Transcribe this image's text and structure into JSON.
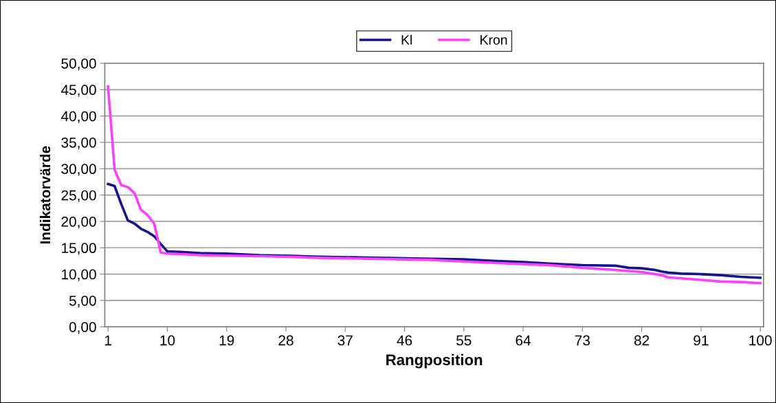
{
  "chart_data": {
    "type": "line",
    "xlabel": "Rangposition",
    "ylabel": "Indikatorvärde",
    "series": [
      {
        "name": "Kl",
        "color": "#14148c",
        "x": [
          1,
          2,
          3,
          4,
          5,
          6,
          7,
          8,
          9,
          10,
          12,
          15,
          19,
          24,
          28,
          33,
          37,
          42,
          46,
          50,
          55,
          60,
          64,
          68,
          73,
          78,
          80,
          82,
          84,
          85,
          86,
          88,
          91,
          94,
          97,
          100
        ],
        "values": [
          27.1,
          26.7,
          23.3,
          20.2,
          19.6,
          18.6,
          18.0,
          17.2,
          15.7,
          14.3,
          14.2,
          14.0,
          13.9,
          13.6,
          13.5,
          13.3,
          13.2,
          13.1,
          13.0,
          12.9,
          12.8,
          12.5,
          12.3,
          12.0,
          11.7,
          11.6,
          11.2,
          11.1,
          10.8,
          10.5,
          10.3,
          10.1,
          10.0,
          9.8,
          9.5,
          9.3
        ]
      },
      {
        "name": "Kron",
        "color": "#ff40ff",
        "x": [
          1,
          2,
          3,
          4,
          5,
          6,
          7,
          8,
          9,
          10,
          12,
          15,
          19,
          24,
          28,
          33,
          37,
          42,
          46,
          50,
          55,
          60,
          64,
          68,
          73,
          78,
          80,
          82,
          84,
          85,
          86,
          88,
          91,
          94,
          97,
          100
        ],
        "values": [
          45.6,
          29.8,
          26.9,
          26.5,
          25.4,
          22.2,
          21.2,
          19.6,
          14.1,
          13.9,
          13.8,
          13.6,
          13.5,
          13.4,
          13.3,
          13.1,
          13.0,
          12.9,
          12.8,
          12.7,
          12.4,
          12.1,
          11.9,
          11.7,
          11.2,
          10.8,
          10.6,
          10.4,
          10.0,
          9.8,
          9.4,
          9.2,
          8.9,
          8.6,
          8.5,
          8.3
        ]
      }
    ],
    "xlim": [
      0.5,
      100.5
    ],
    "xticks": [
      1,
      10,
      19,
      28,
      37,
      46,
      55,
      64,
      73,
      82,
      91,
      100
    ],
    "ylim": [
      0,
      50
    ],
    "yticks": [
      {
        "value": 0,
        "label": "0,00"
      },
      {
        "value": 5,
        "label": "5,00"
      },
      {
        "value": 10,
        "label": "10,00"
      },
      {
        "value": 15,
        "label": "15,00"
      },
      {
        "value": 20,
        "label": "20,00"
      },
      {
        "value": 25,
        "label": "25,00"
      },
      {
        "value": 30,
        "label": "30,00"
      },
      {
        "value": 35,
        "label": "35,00"
      },
      {
        "value": 40,
        "label": "40,00"
      },
      {
        "value": 45,
        "label": "45,00"
      },
      {
        "value": 50,
        "label": "50,00"
      }
    ],
    "grid": "y",
    "legend": "top",
    "marker": "none",
    "line_style": "solid"
  }
}
